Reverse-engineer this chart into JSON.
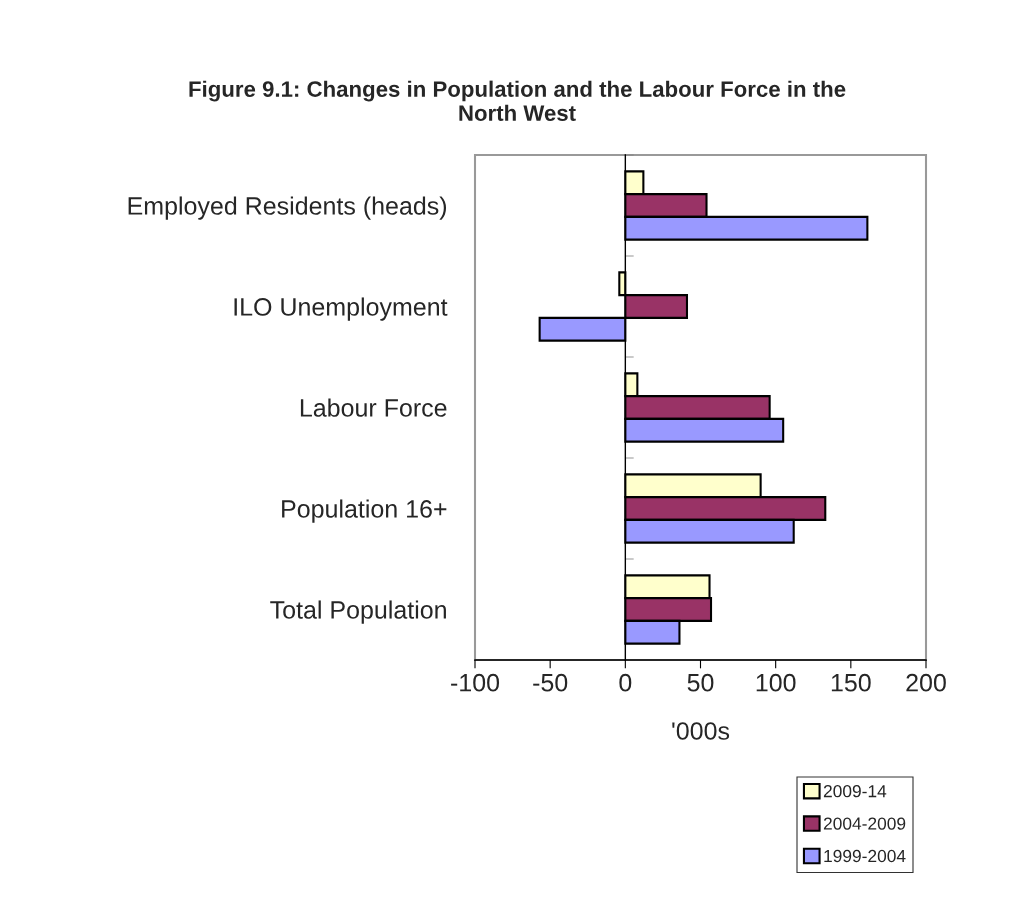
{
  "chart_data": {
    "type": "bar",
    "orientation": "horizontal",
    "title": "Figure 9.1: Changes in Population and the Labour Force in the North West",
    "xlabel": "'000s",
    "categories": [
      "Employed Residents (heads)",
      "ILO Unemployment",
      "Labour Force",
      "Population 16+",
      "Total Population"
    ],
    "series": [
      {
        "name": "2009-14",
        "color": "#ffffcc",
        "values": [
          12,
          -4,
          8,
          90,
          56
        ]
      },
      {
        "name": "2004-2009",
        "color": "#993366",
        "values": [
          54,
          41,
          96,
          133,
          57
        ]
      },
      {
        "name": "1999-2004",
        "color": "#9999ff",
        "values": [
          161,
          -57,
          105,
          112,
          36
        ]
      }
    ],
    "xlim": [
      -100,
      200
    ],
    "xticks": [
      -100,
      -50,
      0,
      50,
      100,
      150,
      200
    ],
    "legend": "bottom right"
  }
}
